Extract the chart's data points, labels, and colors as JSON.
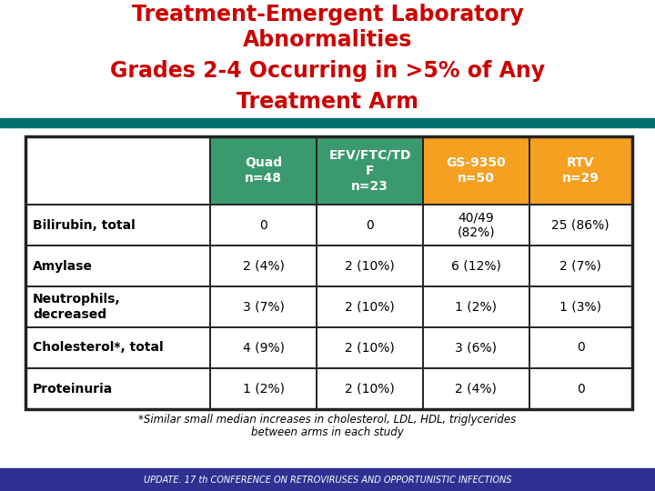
{
  "title_line1": "Treatment-Emergent Laboratory",
  "title_line2": "Abnormalities",
  "title_line3": "Grades 2-4 Occurring in >5% of Any",
  "title_line4": "Treatment Arm",
  "title_color": "#CC0000",
  "bg_color": "#FFFFFF",
  "teal_bar_color": "#007070",
  "header_colors": [
    "#3A9A6E",
    "#3A9A6E",
    "#F5A020",
    "#F5A020"
  ],
  "col_headers": [
    "Quad\nn=48",
    "EFV/FTC/TD\nF\nn=23",
    "GS-9350\nn=50",
    "RTV\nn=29"
  ],
  "row_labels": [
    "Bilirubin, total",
    "Amylase",
    "Neutrophils,\ndecreased",
    "Cholesterol*, total",
    "Proteinuria"
  ],
  "table_data": [
    [
      "0",
      "0",
      "40/49\n(82%)",
      "25 (86%)"
    ],
    [
      "2 (4%)",
      "2 (10%)",
      "6 (12%)",
      "2 (7%)"
    ],
    [
      "3 (7%)",
      "2 (10%)",
      "1 (2%)",
      "1 (3%)"
    ],
    [
      "4 (9%)",
      "2 (10%)",
      "3 (6%)",
      "0"
    ],
    [
      "1 (2%)",
      "2 (10%)",
      "2 (4%)",
      "0"
    ]
  ],
  "footnote_line1": "*Similar small median increases in cholesterol, LDL, HDL, triglycerides",
  "footnote_line2": "between arms in each study",
  "footer_text": "UPDATE. 17 th CONFERENCE ON RETROVIRUSES AND OPPORTUNISTIC INFECTIONS",
  "footer_bg": "#2E3192",
  "footer_text_color": "#FFFFFF",
  "table_border_color": "#222222",
  "row_colors": [
    "#FFFFFF",
    "#FFFFFF",
    "#FFFFFF",
    "#FFFFFF",
    "#FFFFFF"
  ]
}
